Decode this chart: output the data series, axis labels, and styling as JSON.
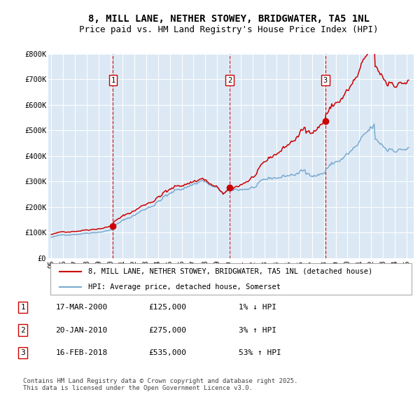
{
  "title": "8, MILL LANE, NETHER STOWEY, BRIDGWATER, TA5 1NL",
  "subtitle": "Price paid vs. HM Land Registry's House Price Index (HPI)",
  "title_fontsize": 10,
  "subtitle_fontsize": 9,
  "bg_color": "#dce9f5",
  "line_color_red": "#cc0000",
  "line_color_blue": "#7aabcf",
  "ylim": [
    0,
    800000
  ],
  "yticks": [
    0,
    100000,
    200000,
    300000,
    400000,
    500000,
    600000,
    700000,
    800000
  ],
  "ytick_labels": [
    "£0",
    "£100K",
    "£200K",
    "£300K",
    "£400K",
    "£500K",
    "£600K",
    "£700K",
    "£800K"
  ],
  "sale_dates": [
    "2000-03-17",
    "2010-01-20",
    "2018-02-16"
  ],
  "sale_prices": [
    125000,
    275000,
    535000
  ],
  "sale_labels": [
    "1",
    "2",
    "3"
  ],
  "legend_entries": [
    "8, MILL LANE, NETHER STOWEY, BRIDGWATER, TA5 1NL (detached house)",
    "HPI: Average price, detached house, Somerset"
  ],
  "table_rows": [
    [
      "1",
      "17-MAR-2000",
      "£125,000",
      "1% ↓ HPI"
    ],
    [
      "2",
      "20-JAN-2010",
      "£275,000",
      "3% ↑ HPI"
    ],
    [
      "3",
      "16-FEB-2018",
      "£535,000",
      "53% ↑ HPI"
    ]
  ],
  "footer": "Contains HM Land Registry data © Crown copyright and database right 2025.\nThis data is licensed under the Open Government Licence v3.0."
}
